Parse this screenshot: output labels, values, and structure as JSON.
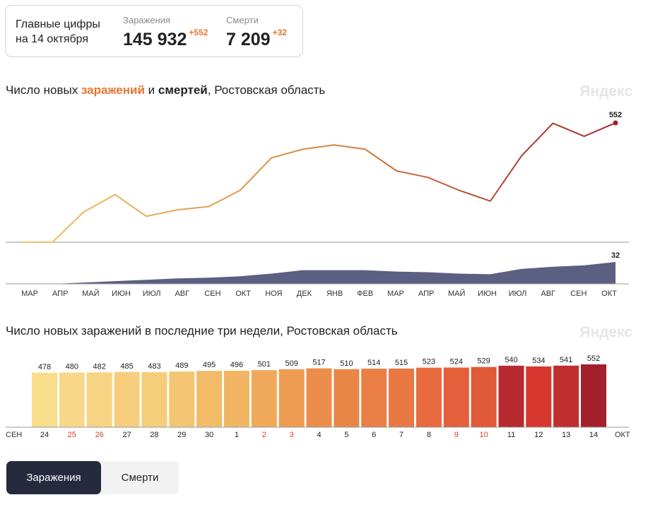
{
  "summary": {
    "title_line1": "Главные цифры",
    "title_line2": "на 14 октября",
    "infections": {
      "label": "Заражения",
      "value": "145 932",
      "delta": "+552"
    },
    "deaths": {
      "label": "Смерти",
      "value": "7 209",
      "delta": "+32"
    }
  },
  "chart1": {
    "title_part1": "Число новых ",
    "title_infections": "заражений",
    "title_part2": " и ",
    "title_deaths": "смертей",
    "title_part3": ", Ростовская область",
    "watermark": "Яндекс",
    "month_labels": [
      "МАР",
      "АПР",
      "МАЙ",
      "ИЮН",
      "ИЮЛ",
      "АВГ",
      "СЕН",
      "ОКТ",
      "НОЯ",
      "ДЕК",
      "ЯНВ",
      "ФЕВ",
      "МАР",
      "АПР",
      "МАЙ",
      "ИЮН",
      "ИЮЛ",
      "АВГ",
      "СЕН",
      "ОКТ"
    ],
    "last_infections_label": "552",
    "last_deaths_label": "32"
  },
  "chart2": {
    "title": "Число новых заражений в последние три недели, Ростовская область",
    "watermark": "Яндекс",
    "start_label": "СЕН",
    "end_label": "ОКТ"
  },
  "tabs": {
    "infections": "Заражения",
    "deaths": "Смерти"
  },
  "colors": {
    "infections_accent": "#e8742f",
    "deaths_area": "#5b5f82",
    "weekend_day": "#d43b2a",
    "active_tab": "#262a3f"
  },
  "chart_data": [
    {
      "type": "line",
      "title": "Число новых заражений и смертей, Ростовская область",
      "x_unit": "month",
      "x": [
        "МАР",
        "АПР",
        "МАЙ",
        "ИЮН",
        "ИЮЛ",
        "АВГ",
        "СЕН",
        "ОКТ",
        "НОЯ",
        "ДЕК",
        "ЯНВ",
        "ФЕВ",
        "МАР",
        "АПР",
        "МАЙ",
        "ИЮН",
        "ИЮЛ",
        "АВГ",
        "СЕН",
        "ОКТ"
      ],
      "series": [
        {
          "name": "заражений",
          "color_gradient": [
            "#f0c468",
            "#a1202a"
          ],
          "values": [
            0,
            0,
            140,
            220,
            120,
            150,
            165,
            240,
            390,
            430,
            450,
            430,
            330,
            300,
            240,
            190,
            400,
            550,
            490,
            552
          ]
        },
        {
          "name": "смертей",
          "color": "#5b5f82",
          "style": "area",
          "values": [
            0,
            0,
            2,
            4,
            6,
            8,
            9,
            11,
            15,
            20,
            20,
            20,
            18,
            17,
            15,
            14,
            22,
            25,
            27,
            32
          ]
        }
      ],
      "labels": {
        "last_infections": 552,
        "last_deaths": 32
      },
      "legend": "none"
    },
    {
      "type": "bar",
      "title": "Число новых заражений в последние три недели, Ростовская область",
      "categories": [
        "24",
        "25",
        "26",
        "27",
        "28",
        "29",
        "30",
        "1",
        "2",
        "3",
        "4",
        "5",
        "6",
        "7",
        "8",
        "9",
        "10",
        "11",
        "12",
        "13",
        "14"
      ],
      "values": [
        478,
        480,
        482,
        485,
        483,
        489,
        495,
        496,
        501,
        509,
        517,
        510,
        514,
        515,
        523,
        524,
        529,
        540,
        534,
        541,
        552
      ],
      "weekend_categories": [
        "25",
        "26",
        "2",
        "3",
        "9",
        "10"
      ],
      "xlabel_start": "СЕН",
      "xlabel_end": "ОКТ",
      "colors": [
        "#f8dd8b",
        "#f8d888",
        "#f7d483",
        "#f6ce7d",
        "#f5cd7b",
        "#f4c572",
        "#f2bb68",
        "#f1b564",
        "#f0a95a",
        "#ee9c52",
        "#ec8e4b",
        "#ea8548",
        "#ea7f45",
        "#e97843",
        "#e86a3e",
        "#e5603a",
        "#e05a38",
        "#b82a2f",
        "#d7362e",
        "#c02d2e",
        "#a41f2c"
      ],
      "grid": false
    }
  ]
}
